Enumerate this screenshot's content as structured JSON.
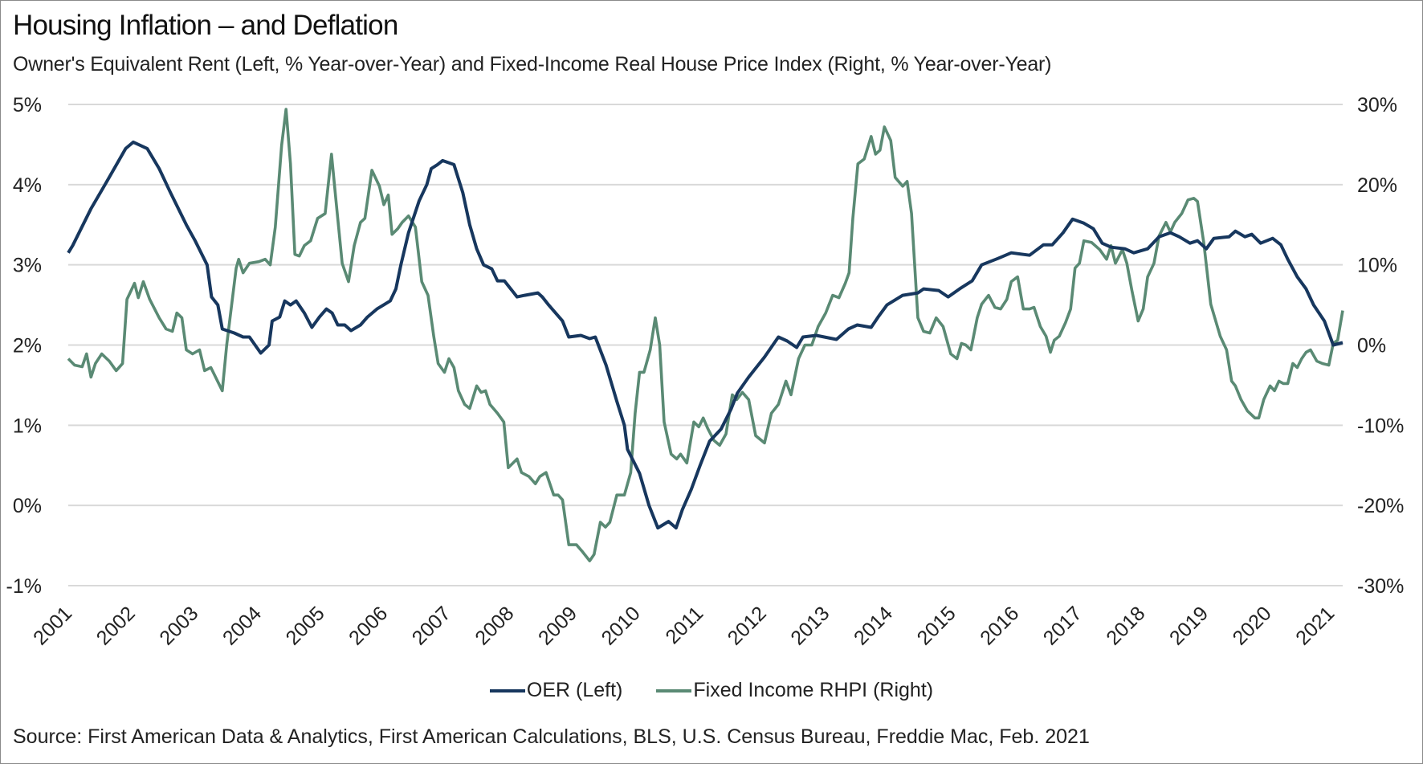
{
  "title": "Housing Inflation – and Deflation",
  "subtitle": "Owner's Equivalent Rent (Left, % Year-over-Year) and Fixed-Income Real House Price Index (Right, % Year-over-Year)",
  "source": "Source: First American Data & Analytics, First American Calculations, BLS, U.S. Census Bureau, Freddie Mac, Feb. 2021",
  "colors": {
    "oer": "#17375e",
    "rhpi": "#5a8a74",
    "grid": "#d9d9d9"
  },
  "chart_data": {
    "type": "line",
    "title": "Housing Inflation – and Deflation",
    "xlim": [
      2001,
      2021.19
    ],
    "x_ticks": [
      "2001",
      "2002",
      "2003",
      "2004",
      "2005",
      "2006",
      "2007",
      "2008",
      "2009",
      "2010",
      "2011",
      "2012",
      "2013",
      "2014",
      "2015",
      "2016",
      "2017",
      "2018",
      "2019",
      "2020",
      "2021"
    ],
    "y_left": {
      "range": [
        -1,
        5
      ],
      "ticks": [
        "5%",
        "4%",
        "3%",
        "2%",
        "1%",
        "0%",
        "-1%"
      ],
      "tick_values": [
        5,
        4,
        3,
        2,
        1,
        0,
        -1
      ]
    },
    "y_right": {
      "range": [
        -30,
        30
      ],
      "ticks": [
        "30%",
        "20%",
        "10%",
        "0%",
        "-10%",
        "-20%",
        "-30%"
      ],
      "tick_values": [
        30,
        20,
        10,
        0,
        -10,
        -20,
        -30
      ]
    },
    "grid": true,
    "legend_placement": "bottom",
    "series": [
      {
        "name": "OER (Left)",
        "axis": "left",
        "color": "#17375e",
        "x": [
          2001.0,
          2001.07,
          2001.36,
          2001.62,
          2001.91,
          2002.03,
          2002.25,
          2002.44,
          2002.62,
          2002.87,
          2003.01,
          2003.2,
          2003.27,
          2003.37,
          2003.44,
          2003.63,
          2003.77,
          2003.87,
          2004.05,
          2004.18,
          2004.23,
          2004.35,
          2004.43,
          2004.52,
          2004.61,
          2004.74,
          2004.86,
          2004.98,
          2005.09,
          2005.18,
          2005.27,
          2005.38,
          2005.48,
          2005.63,
          2005.74,
          2005.89,
          2006.1,
          2006.19,
          2006.27,
          2006.39,
          2006.56,
          2006.68,
          2006.75,
          2006.85,
          2006.93,
          2007.11,
          2007.25,
          2007.36,
          2007.47,
          2007.58,
          2007.71,
          2007.8,
          2007.91,
          2008.01,
          2008.11,
          2008.23,
          2008.44,
          2008.51,
          2008.61,
          2008.83,
          2008.93,
          2009.12,
          2009.26,
          2009.35,
          2009.52,
          2009.69,
          2009.81,
          2009.86,
          2010.05,
          2010.2,
          2010.34,
          2010.51,
          2010.63,
          2010.73,
          2010.87,
          2011.01,
          2011.16,
          2011.34,
          2011.5,
          2011.6,
          2011.78,
          2011.88,
          2012.03,
          2012.25,
          2012.39,
          2012.54,
          2012.64,
          2012.85,
          2013.17,
          2013.36,
          2013.5,
          2013.72,
          2013.83,
          2013.97,
          2014.22,
          2014.46,
          2014.55,
          2014.79,
          2014.94,
          2015.12,
          2015.32,
          2015.47,
          2015.73,
          2015.94,
          2016.23,
          2016.45,
          2016.59,
          2016.76,
          2016.91,
          2017.09,
          2017.24,
          2017.38,
          2017.52,
          2017.74,
          2017.88,
          2018.1,
          2018.28,
          2018.46,
          2018.6,
          2018.77,
          2018.89,
          2019.03,
          2019.15,
          2019.39,
          2019.49,
          2019.64,
          2019.75,
          2019.89,
          2020.08,
          2020.21,
          2020.32,
          2020.47,
          2020.61,
          2020.73,
          2020.9,
          2021.04,
          2021.19
        ],
        "y": [
          3.15,
          3.24,
          3.7,
          4.05,
          4.45,
          4.53,
          4.45,
          4.2,
          3.9,
          3.5,
          3.3,
          3.0,
          2.6,
          2.5,
          2.2,
          2.15,
          2.1,
          2.1,
          1.9,
          2.0,
          2.3,
          2.35,
          2.55,
          2.5,
          2.55,
          2.4,
          2.22,
          2.35,
          2.45,
          2.4,
          2.25,
          2.25,
          2.18,
          2.25,
          2.35,
          2.45,
          2.55,
          2.7,
          3.0,
          3.4,
          3.8,
          4.0,
          4.2,
          4.25,
          4.3,
          4.25,
          3.9,
          3.5,
          3.2,
          3.0,
          2.95,
          2.8,
          2.8,
          2.7,
          2.6,
          2.62,
          2.65,
          2.6,
          2.5,
          2.3,
          2.1,
          2.12,
          2.08,
          2.1,
          1.75,
          1.3,
          1.0,
          0.7,
          0.4,
          0.0,
          -0.28,
          -0.2,
          -0.28,
          -0.05,
          0.2,
          0.5,
          0.8,
          0.95,
          1.2,
          1.4,
          1.6,
          1.7,
          1.85,
          2.1,
          2.05,
          1.97,
          2.1,
          2.12,
          2.07,
          2.2,
          2.25,
          2.22,
          2.35,
          2.5,
          2.62,
          2.65,
          2.7,
          2.68,
          2.6,
          2.7,
          2.8,
          3.0,
          3.08,
          3.15,
          3.12,
          3.25,
          3.25,
          3.4,
          3.57,
          3.52,
          3.45,
          3.27,
          3.22,
          3.2,
          3.15,
          3.2,
          3.35,
          3.4,
          3.35,
          3.27,
          3.3,
          3.2,
          3.33,
          3.35,
          3.42,
          3.35,
          3.38,
          3.27,
          3.33,
          3.25,
          3.07,
          2.85,
          2.7,
          2.5,
          2.3,
          2.0,
          2.03
        ]
      },
      {
        "name": "Fixed Income RHPI (Right)",
        "axis": "right",
        "color": "#5a8a74",
        "x": [
          2001.0,
          2001.1,
          2001.22,
          2001.29,
          2001.36,
          2001.43,
          2001.53,
          2001.65,
          2001.76,
          2001.86,
          2001.93,
          2002.05,
          2002.11,
          2002.19,
          2002.29,
          2002.44,
          2002.55,
          2002.65,
          2002.72,
          2002.8,
          2002.87,
          2002.97,
          2003.08,
          2003.16,
          2003.26,
          2003.44,
          2003.51,
          2003.66,
          2003.7,
          2003.77,
          2003.87,
          2004.02,
          2004.12,
          2004.2,
          2004.28,
          2004.38,
          2004.45,
          2004.52,
          2004.59,
          2004.66,
          2004.74,
          2004.84,
          2004.95,
          2005.07,
          2005.17,
          2005.24,
          2005.34,
          2005.44,
          2005.53,
          2005.63,
          2005.7,
          2005.81,
          2005.93,
          2006.0,
          2006.07,
          2006.13,
          2006.22,
          2006.29,
          2006.39,
          2006.5,
          2006.6,
          2006.7,
          2006.79,
          2006.86,
          2006.96,
          2007.03,
          2007.11,
          2007.18,
          2007.28,
          2007.36,
          2007.47,
          2007.54,
          2007.61,
          2007.68,
          2007.8,
          2007.9,
          2007.97,
          2008.11,
          2008.18,
          2008.3,
          2008.4,
          2008.47,
          2008.57,
          2008.69,
          2008.76,
          2008.83,
          2008.93,
          2009.05,
          2009.15,
          2009.26,
          2009.33,
          2009.43,
          2009.51,
          2009.58,
          2009.69,
          2009.81,
          2009.91,
          2009.98,
          2010.05,
          2010.12,
          2010.22,
          2010.3,
          2010.37,
          2010.44,
          2010.55,
          2010.64,
          2010.7,
          2010.8,
          2010.91,
          2010.99,
          2011.06,
          2011.13,
          2011.23,
          2011.32,
          2011.42,
          2011.52,
          2011.59,
          2011.68,
          2011.78,
          2011.89,
          2012.03,
          2012.14,
          2012.25,
          2012.37,
          2012.45,
          2012.57,
          2012.67,
          2012.78,
          2012.88,
          2013.0,
          2013.11,
          2013.21,
          2013.31,
          2013.37,
          2013.43,
          2013.51,
          2013.61,
          2013.72,
          2013.79,
          2013.86,
          2013.93,
          2014.03,
          2014.1,
          2014.22,
          2014.29,
          2014.36,
          2014.46,
          2014.55,
          2014.65,
          2014.75,
          2014.86,
          2014.98,
          2015.08,
          2015.15,
          2015.22,
          2015.3,
          2015.4,
          2015.47,
          2015.58,
          2015.68,
          2015.77,
          2015.87,
          2015.94,
          2016.04,
          2016.13,
          2016.23,
          2016.3,
          2016.4,
          2016.49,
          2016.56,
          2016.62,
          2016.7,
          2016.8,
          2016.88,
          2016.95,
          2017.02,
          2017.09,
          2017.21,
          2017.34,
          2017.45,
          2017.52,
          2017.59,
          2017.7,
          2017.77,
          2017.85,
          2017.95,
          2018.03,
          2018.1,
          2018.2,
          2018.28,
          2018.39,
          2018.46,
          2018.53,
          2018.64,
          2018.74,
          2018.83,
          2018.89,
          2018.99,
          2019.1,
          2019.25,
          2019.35,
          2019.43,
          2019.49,
          2019.58,
          2019.68,
          2019.8,
          2019.86,
          2019.94,
          2020.04,
          2020.11,
          2020.18,
          2020.25,
          2020.32,
          2020.4,
          2020.47,
          2020.54,
          2020.61,
          2020.68,
          2020.78,
          2020.87,
          2020.97,
          2021.04,
          2021.11,
          2021.19
        ],
        "y": [
          -1.7,
          -2.5,
          -2.7,
          -1.1,
          -4.0,
          -2.3,
          -1.1,
          -2.0,
          -3.2,
          -2.3,
          5.7,
          7.7,
          5.9,
          7.9,
          5.7,
          3.4,
          2.0,
          1.7,
          4.0,
          3.4,
          -0.6,
          -1.1,
          -0.6,
          -3.2,
          -2.8,
          -5.7,
          0.0,
          9.6,
          10.7,
          9.0,
          10.2,
          10.4,
          10.7,
          10.0,
          14.7,
          24.9,
          29.4,
          22.6,
          11.3,
          11.1,
          12.4,
          13.0,
          15.8,
          16.4,
          23.8,
          18.1,
          10.2,
          7.9,
          12.4,
          15.3,
          15.8,
          21.8,
          19.8,
          17.5,
          18.7,
          13.8,
          14.5,
          15.3,
          16.1,
          14.7,
          7.9,
          6.2,
          1.1,
          -2.3,
          -3.4,
          -1.7,
          -2.8,
          -5.7,
          -7.4,
          -7.9,
          -5.1,
          -5.9,
          -5.7,
          -7.4,
          -8.5,
          -9.6,
          -15.3,
          -14.2,
          -15.9,
          -16.4,
          -17.3,
          -16.4,
          -15.9,
          -18.7,
          -18.7,
          -19.3,
          -24.9,
          -24.9,
          -25.8,
          -26.9,
          -26.1,
          -22.1,
          -22.7,
          -22.1,
          -18.7,
          -18.7,
          -15.9,
          -8.5,
          -3.4,
          -3.4,
          -0.6,
          3.4,
          0.0,
          -9.6,
          -13.6,
          -14.2,
          -13.6,
          -14.7,
          -9.6,
          -10.2,
          -9.1,
          -10.4,
          -11.9,
          -12.5,
          -11.1,
          -6.2,
          -6.8,
          -5.9,
          -6.8,
          -11.3,
          -12.2,
          -8.5,
          -7.4,
          -4.5,
          -6.2,
          -1.7,
          0.0,
          0.0,
          2.3,
          4.0,
          6.2,
          5.9,
          7.7,
          9.0,
          15.8,
          22.6,
          23.2,
          26.0,
          23.8,
          24.3,
          27.2,
          25.5,
          20.9,
          19.8,
          20.4,
          16.4,
          3.4,
          1.7,
          1.5,
          3.4,
          2.3,
          -1.1,
          -1.7,
          0.2,
          0.0,
          -0.6,
          3.4,
          5.1,
          6.2,
          4.7,
          4.5,
          5.7,
          7.9,
          8.5,
          4.5,
          4.5,
          4.7,
          2.3,
          1.1,
          -0.9,
          0.6,
          1.1,
          2.8,
          4.5,
          9.6,
          10.2,
          13.0,
          12.8,
          11.9,
          10.7,
          12.4,
          10.2,
          11.9,
          10.2,
          6.8,
          3.0,
          4.5,
          8.5,
          10.2,
          13.6,
          15.3,
          14.1,
          15.3,
          16.4,
          18.1,
          18.3,
          17.9,
          12.7,
          5.1,
          1.1,
          -0.6,
          -4.5,
          -5.1,
          -6.8,
          -8.2,
          -9.1,
          -9.1,
          -6.8,
          -5.1,
          -5.7,
          -4.5,
          -4.8,
          -4.8,
          -2.3,
          -2.8,
          -1.7,
          -0.9,
          -0.6,
          -2.0,
          -2.3,
          -2.5,
          0.2,
          0.6,
          4.3
        ]
      }
    ]
  }
}
